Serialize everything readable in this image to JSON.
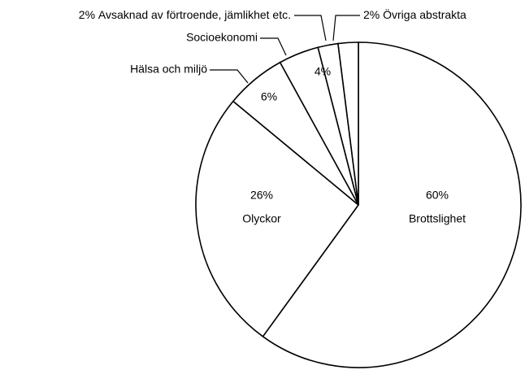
{
  "chart_data": {
    "type": "pie",
    "categories": [
      "Brottslighet",
      "Olyckor",
      "Hälsa och miljö",
      "Socioekonomi",
      "Avsaknad av förtroende, jämlikhet etc.",
      "Övriga abstrakta"
    ],
    "values": [
      60,
      26,
      6,
      4,
      2,
      2
    ],
    "value_labels": [
      "60%",
      "26%",
      "6%",
      "4%",
      "2%",
      "2%"
    ],
    "color": "#ffffff",
    "stroke": "#000000"
  }
}
